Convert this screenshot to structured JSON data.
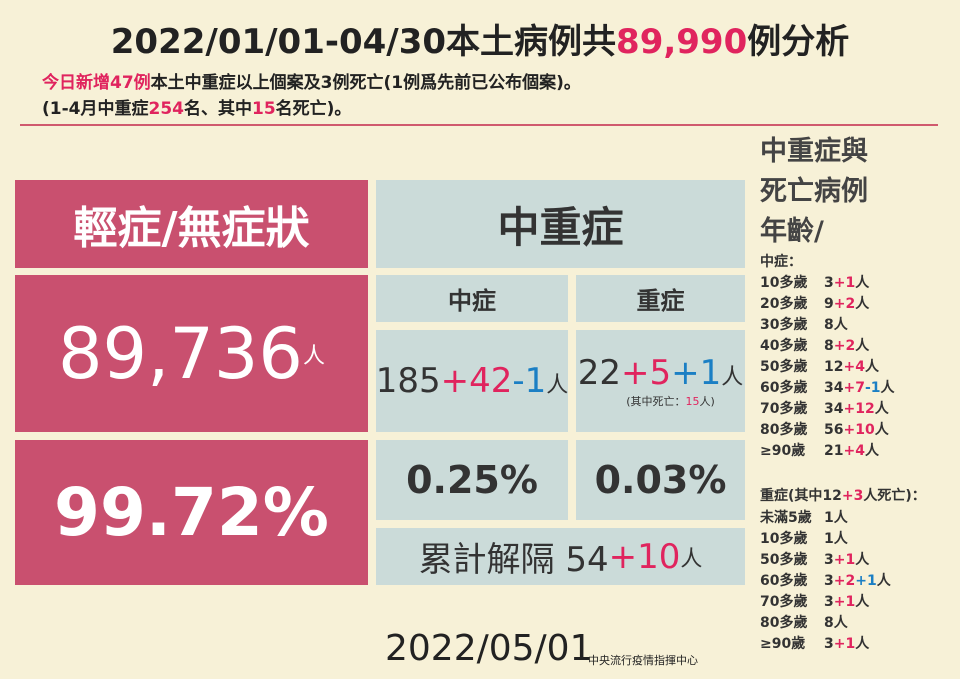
{
  "header": {
    "title": [
      "2022/01/01-04/30本土病例共",
      {
        "text": "89,990",
        "color": "#e0245e"
      },
      "例分析"
    ],
    "lines": [
      [
        {
          "text": "今日新增47例",
          "color": "#e0245e"
        },
        "本土中重症以上個案及3例死亡(1例爲先前已公布個案)。"
      ],
      [
        "(1-4月中重症",
        {
          "text": "254",
          "color": "#e0245e"
        },
        "名、其中",
        {
          "text": "15",
          "color": "#e0245e"
        },
        "名死亡)。"
      ]
    ]
  },
  "mild": {
    "title": "輕症/無症狀",
    "count": [
      "89,736",
      "人"
    ],
    "rate": "99.72%"
  },
  "severe": {
    "title": "中重症",
    "moderate": {
      "label": "中症",
      "value": [
        "185",
        {
          "text": "+42",
          "color": "#e0245e"
        },
        {
          "text": "-1",
          "color": "#1b7fc4"
        },
        "人"
      ],
      "rate": "0.25%"
    },
    "critical": {
      "label": "重症",
      "value": [
        "22",
        {
          "text": "+5",
          "color": "#e0245e"
        },
        {
          "text": "+1",
          "color": "#1b7fc4"
        },
        "人"
      ],
      "note": [
        "(其中死亡：",
        {
          "text": "15",
          "color": "#e0245e"
        },
        "人)"
      ],
      "rate": "0.03%"
    },
    "released": [
      "累計解隔 54",
      {
        "text": "+10",
        "color": "#e0245e"
      },
      "人"
    ]
  },
  "ages": {
    "title": [
      "中重症與",
      "死亡病例",
      "年齡/"
    ],
    "moderate": {
      "label": "中症：",
      "rows": [
        {
          "age": "10多歲",
          "value": [
            "3",
            {
              "text": "+1",
              "color": "#e0245e"
            },
            "人"
          ]
        },
        {
          "age": "20多歲",
          "value": [
            "9",
            {
              "text": "+2",
              "color": "#e0245e"
            },
            "人"
          ]
        },
        {
          "age": "30多歲",
          "value": [
            "8人"
          ]
        },
        {
          "age": "40多歲",
          "value": [
            "8",
            {
              "text": "+2",
              "color": "#e0245e"
            },
            "人"
          ]
        },
        {
          "age": "50多歲",
          "value": [
            "12",
            {
              "text": "+4",
              "color": "#e0245e"
            },
            "人"
          ]
        },
        {
          "age": "60多歲",
          "value": [
            "34",
            {
              "text": "+7",
              "color": "#e0245e"
            },
            {
              "text": "-1",
              "color": "#1b7fc4"
            },
            "人"
          ]
        },
        {
          "age": "70多歲",
          "value": [
            "34",
            {
              "text": "+12",
              "color": "#e0245e"
            },
            "人"
          ]
        },
        {
          "age": "80多歲",
          "value": [
            "56",
            {
              "text": "+10",
              "color": "#e0245e"
            },
            "人"
          ]
        },
        {
          "age": "≥90歲",
          "value": [
            "21",
            {
              "text": "+4",
              "color": "#e0245e"
            },
            "人"
          ]
        }
      ]
    },
    "critical": {
      "label": [
        "重症(其中12",
        {
          "text": "+3",
          "color": "#e0245e"
        },
        "人死亡)："
      ],
      "rows": [
        {
          "age": "未滿5歲",
          "value": [
            "1人"
          ]
        },
        {
          "age": "10多歲",
          "value": [
            "1人"
          ]
        },
        {
          "age": "50多歲",
          "value": [
            "3",
            {
              "text": "+1",
              "color": "#e0245e"
            },
            "人"
          ]
        },
        {
          "age": "60多歲",
          "value": [
            "3",
            {
              "text": "+2",
              "color": "#e0245e"
            },
            {
              "text": "+1",
              "color": "#1b7fc4"
            },
            "人"
          ]
        },
        {
          "age": "70多歲",
          "value": [
            "3",
            {
              "text": "+1",
              "color": "#e0245e"
            },
            "人"
          ]
        },
        {
          "age": "80多歲",
          "value": [
            "8人"
          ]
        },
        {
          "age": "≥90歲",
          "value": [
            "3",
            {
              "text": "+1",
              "color": "#e0245e"
            },
            "人"
          ]
        }
      ]
    }
  },
  "footer": {
    "date": "2022/05/01",
    "org": "中央流行疫情指揮中心"
  }
}
